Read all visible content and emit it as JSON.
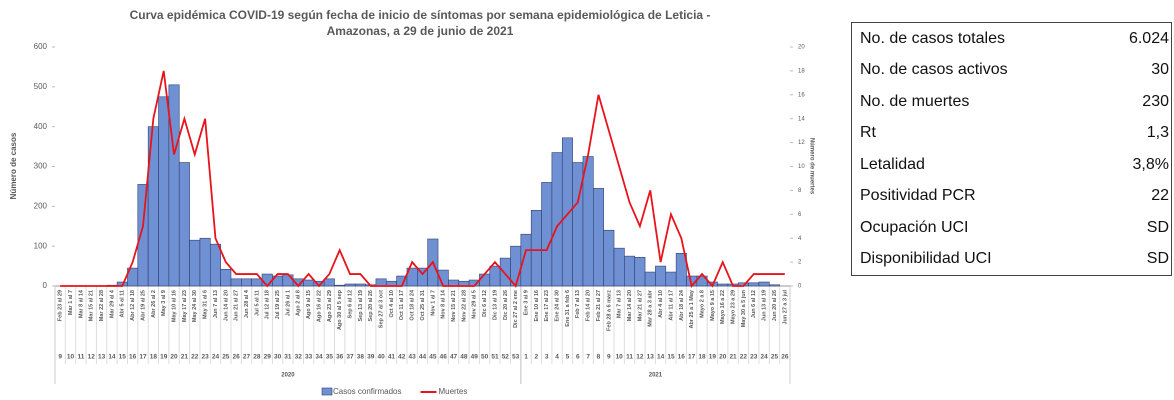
{
  "chart_data": {
    "type": "bar-line",
    "title": [
      "Curva epidémica COVID-19 según fecha de inicio de síntomas por semana epidemiológica de Leticia -",
      "Amazonas, a 29 de junio de 2021"
    ],
    "y_label": "Número de casos",
    "y2_label": "Número de muertes",
    "categories": [
      "9",
      "10",
      "11",
      "12",
      "13",
      "14",
      "15",
      "16",
      "17",
      "18",
      "19",
      "20",
      "21",
      "22",
      "23",
      "24",
      "25",
      "26",
      "27",
      "28",
      "29",
      "30",
      "31",
      "32",
      "33",
      "34",
      "35",
      "36",
      "37",
      "38",
      "39",
      "40",
      "41",
      "42",
      "43",
      "44",
      "45",
      "46",
      "47",
      "48",
      "49",
      "50",
      "51",
      "52",
      "53",
      "1",
      "2",
      "3",
      "4",
      "5",
      "6",
      "7",
      "8",
      "9",
      "10",
      "11",
      "12",
      "13",
      "14",
      "15",
      "16",
      "17",
      "18",
      "19",
      "20",
      "21",
      "22",
      "23",
      "24",
      "25",
      "26"
    ],
    "date_labels": [
      "Feb 23 al 29",
      "Mar 1 al 7",
      "Mar 8 al 14",
      "Mar 15 al 21",
      "Mar 22 al 28",
      "Mar 29 al 4",
      "Abr 5 al 11",
      "Abr 12 al 18",
      "Abr 19 al 25",
      "Abr 26 al 2",
      "May 3 al 9",
      "May 10 al 16",
      "May 17 al 23",
      "May 24 al 30",
      "May 31 al 6",
      "Jun 7 al 13",
      "Jun 14 al 20",
      "Jun 21 al 27",
      "Jun 28 al 4",
      "Jul 5 al 11",
      "Jul 12 al 18",
      "Jul 19 al 25",
      "Jul 26 al 1",
      "Ago 2 al 8",
      "Ago 9 al 15",
      "Ago 16 al 22",
      "Ago 23 al 29",
      "Ago 30 al 5 sep",
      "Sep 6 al 12",
      "Sep 13 al 19",
      "Sep 20 al 26",
      "Sep 27 al 3 oct",
      "Oct 4 al 10",
      "Oct 11 al 17",
      "Oct 18 al 24",
      "Oct 25 al 31",
      "Nov 1 al 7",
      "Nov 8 al 14",
      "Nov 15 al 21",
      "Nov 22 al 28",
      "Nov 29 al 5",
      "Dic 6 al 12",
      "Dic 13 al 19",
      "Dic 20 al 26",
      "Dic 27 al 2 ene",
      "Ene 3 al 9",
      "Ene 10 al 16",
      "Ene 17 al 23",
      "Ene 24 al 30",
      "Ene 31 a feb 6",
      "Feb 7 al 13",
      "Feb 14 al 20",
      "Feb 21 al 27",
      "Feb 28 a 6 marz",
      "Mar 7 al 13",
      "Mar 14 al 20",
      "Mar 21 al 27",
      "Mar 28 a 3 abr",
      "Abr 4 al 10",
      "Abr 11 al 17",
      "Abr 18 al 24",
      "Abr 25 a 1 May",
      "Mayo 2 a 8",
      "Mayo 9 a 15",
      "Mayo 16 a 22",
      "Mayo 23 a 29",
      "May 30 a 5 jun",
      "Jun 6 al 12",
      "Jun 13 al 19",
      "Jun 20 al 26",
      "Jun 27 a 3 jul"
    ],
    "groups": [
      {
        "label": "2020",
        "count": 45
      },
      {
        "label": "2021",
        "count": 26
      }
    ],
    "series": [
      {
        "name": "Casos confirmados",
        "type": "bar",
        "color": "#7090d4",
        "values": [
          0,
          0,
          0,
          0,
          0,
          2,
          10,
          45,
          255,
          400,
          475,
          505,
          310,
          115,
          120,
          105,
          42,
          18,
          18,
          18,
          30,
          25,
          28,
          18,
          15,
          12,
          18,
          2,
          5,
          5,
          3,
          18,
          12,
          25,
          45,
          45,
          118,
          40,
          15,
          12,
          15,
          30,
          50,
          70,
          100,
          130,
          190,
          260,
          335,
          372,
          310,
          325,
          245,
          140,
          95,
          75,
          72,
          35,
          50,
          35,
          82,
          25,
          25,
          10,
          5,
          5,
          8,
          8,
          10,
          3,
          0
        ]
      },
      {
        "name": "Muertes",
        "type": "line",
        "axis": "y2",
        "color": "#e8141b",
        "values": [
          0,
          0,
          0,
          0,
          0,
          0,
          0,
          2,
          5,
          14,
          18,
          11,
          14,
          11,
          14,
          4,
          2,
          1,
          1,
          1,
          0,
          1,
          1,
          0,
          1,
          0,
          1,
          3,
          1,
          1,
          0,
          0,
          0,
          0,
          2,
          1,
          2,
          0,
          0,
          0,
          0,
          1,
          2,
          1,
          0,
          3,
          3,
          3,
          5,
          6,
          7,
          11,
          16,
          13,
          10,
          7,
          5,
          8,
          2,
          6,
          4,
          0,
          1,
          0,
          2,
          0,
          0,
          1,
          1,
          1,
          1
        ]
      }
    ],
    "ylim": [
      0,
      600
    ],
    "yticks": [
      0,
      100,
      200,
      300,
      400,
      500,
      600
    ],
    "y2lim": [
      0,
      20
    ],
    "y2ticks": [
      0,
      2,
      4,
      6,
      8,
      10,
      12,
      14,
      16,
      18,
      20
    ]
  },
  "table": {
    "rows": [
      [
        "No. de casos totales",
        "6.024"
      ],
      [
        "No. de casos activos",
        "30"
      ],
      [
        "No. de muertes",
        "230"
      ],
      [
        "Rt",
        "1,3"
      ],
      [
        "Letalidad",
        "3,8%"
      ],
      [
        "Positividad PCR",
        "22"
      ],
      [
        "Ocupación UCI",
        "SD"
      ],
      [
        "Disponibilidad UCI",
        "SD"
      ]
    ]
  }
}
